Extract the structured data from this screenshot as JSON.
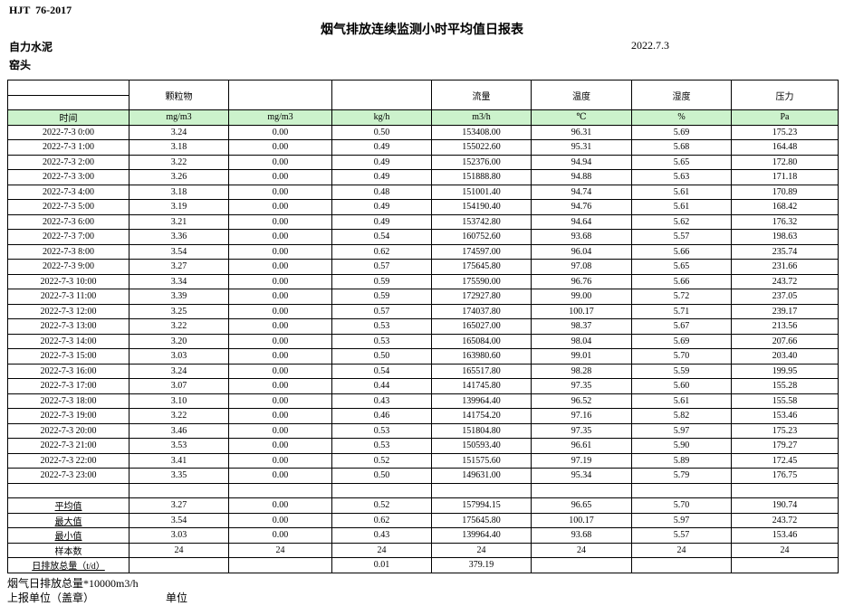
{
  "header": {
    "standard": "HJT  76-2017",
    "title": "烟气排放连续监测小时平均值日报表",
    "company": "自力水泥",
    "date": "2022.7.3",
    "location": "窑头"
  },
  "table": {
    "group_headers": [
      "",
      "颗粒物",
      "",
      "",
      "流量",
      "温度",
      "湿度",
      "压力"
    ],
    "unit_row": [
      "时间",
      "mg/m3",
      "mg/m3",
      "kg/h",
      "m3/h",
      "℃",
      "%",
      "Pa"
    ],
    "rows": [
      [
        "2022-7-3 0:00",
        "3.24",
        "0.00",
        "0.50",
        "153408.00",
        "96.31",
        "5.69",
        "175.23"
      ],
      [
        "2022-7-3 1:00",
        "3.18",
        "0.00",
        "0.49",
        "155022.60",
        "95.31",
        "5.68",
        "164.48"
      ],
      [
        "2022-7-3 2:00",
        "3.22",
        "0.00",
        "0.49",
        "152376.00",
        "94.94",
        "5.65",
        "172.80"
      ],
      [
        "2022-7-3 3:00",
        "3.26",
        "0.00",
        "0.49",
        "151888.80",
        "94.88",
        "5.63",
        "171.18"
      ],
      [
        "2022-7-3 4:00",
        "3.18",
        "0.00",
        "0.48",
        "151001.40",
        "94.74",
        "5.61",
        "170.89"
      ],
      [
        "2022-7-3 5:00",
        "3.19",
        "0.00",
        "0.49",
        "154190.40",
        "94.76",
        "5.61",
        "168.42"
      ],
      [
        "2022-7-3 6:00",
        "3.21",
        "0.00",
        "0.49",
        "153742.80",
        "94.64",
        "5.62",
        "176.32"
      ],
      [
        "2022-7-3 7:00",
        "3.36",
        "0.00",
        "0.54",
        "160752.60",
        "93.68",
        "5.57",
        "198.63"
      ],
      [
        "2022-7-3 8:00",
        "3.54",
        "0.00",
        "0.62",
        "174597.00",
        "96.04",
        "5.66",
        "235.74"
      ],
      [
        "2022-7-3 9:00",
        "3.27",
        "0.00",
        "0.57",
        "175645.80",
        "97.08",
        "5.65",
        "231.66"
      ],
      [
        "2022-7-3 10:00",
        "3.34",
        "0.00",
        "0.59",
        "175590.00",
        "96.76",
        "5.66",
        "243.72"
      ],
      [
        "2022-7-3 11:00",
        "3.39",
        "0.00",
        "0.59",
        "172927.80",
        "99.00",
        "5.72",
        "237.05"
      ],
      [
        "2022-7-3 12:00",
        "3.25",
        "0.00",
        "0.57",
        "174037.80",
        "100.17",
        "5.71",
        "239.17"
      ],
      [
        "2022-7-3 13:00",
        "3.22",
        "0.00",
        "0.53",
        "165027.00",
        "98.37",
        "5.67",
        "213.56"
      ],
      [
        "2022-7-3 14:00",
        "3.20",
        "0.00",
        "0.53",
        "165084.00",
        "98.04",
        "5.69",
        "207.66"
      ],
      [
        "2022-7-3 15:00",
        "3.03",
        "0.00",
        "0.50",
        "163980.60",
        "99.01",
        "5.70",
        "203.40"
      ],
      [
        "2022-7-3 16:00",
        "3.24",
        "0.00",
        "0.54",
        "165517.80",
        "98.28",
        "5.59",
        "199.95"
      ],
      [
        "2022-7-3 17:00",
        "3.07",
        "0.00",
        "0.44",
        "141745.80",
        "97.35",
        "5.60",
        "155.28"
      ],
      [
        "2022-7-3 18:00",
        "3.10",
        "0.00",
        "0.43",
        "139964.40",
        "96.52",
        "5.61",
        "155.58"
      ],
      [
        "2022-7-3 19:00",
        "3.22",
        "0.00",
        "0.46",
        "141754.20",
        "97.16",
        "5.82",
        "153.46"
      ],
      [
        "2022-7-3 20:00",
        "3.46",
        "0.00",
        "0.53",
        "151804.80",
        "97.35",
        "5.97",
        "175.23"
      ],
      [
        "2022-7-3 21:00",
        "3.53",
        "0.00",
        "0.53",
        "150593.40",
        "96.61",
        "5.90",
        "179.27"
      ],
      [
        "2022-7-3 22:00",
        "3.41",
        "0.00",
        "0.52",
        "151575.60",
        "97.19",
        "5.89",
        "172.45"
      ],
      [
        "2022-7-3 23:00",
        "3.35",
        "0.00",
        "0.50",
        "149631.00",
        "95.34",
        "5.79",
        "176.75"
      ]
    ],
    "summary": [
      {
        "label": "平均值",
        "underline": true,
        "values": [
          "3.27",
          "0.00",
          "0.52",
          "157994.15",
          "96.65",
          "5.70",
          "190.74"
        ]
      },
      {
        "label": "最大值",
        "underline": true,
        "values": [
          "3.54",
          "0.00",
          "0.62",
          "175645.80",
          "100.17",
          "5.97",
          "243.72"
        ]
      },
      {
        "label": "最小值",
        "underline": true,
        "values": [
          "3.03",
          "0.00",
          "0.43",
          "139964.40",
          "93.68",
          "5.57",
          "153.46"
        ]
      },
      {
        "label": "样本数",
        "underline": false,
        "values": [
          "24",
          "24",
          "24",
          "24",
          "24",
          "24",
          "24"
        ]
      },
      {
        "label": "日排放总量（t/d）",
        "underline": true,
        "values": [
          "",
          "",
          "0.01",
          "379.19",
          "",
          "",
          ""
        ]
      }
    ]
  },
  "footer": {
    "note": "烟气日排放总量*10000m3/h",
    "report_unit": "上报单位（盖章）",
    "unit": "单位"
  },
  "colors": {
    "header_green": "#CCF2CC",
    "border": "#000000"
  }
}
